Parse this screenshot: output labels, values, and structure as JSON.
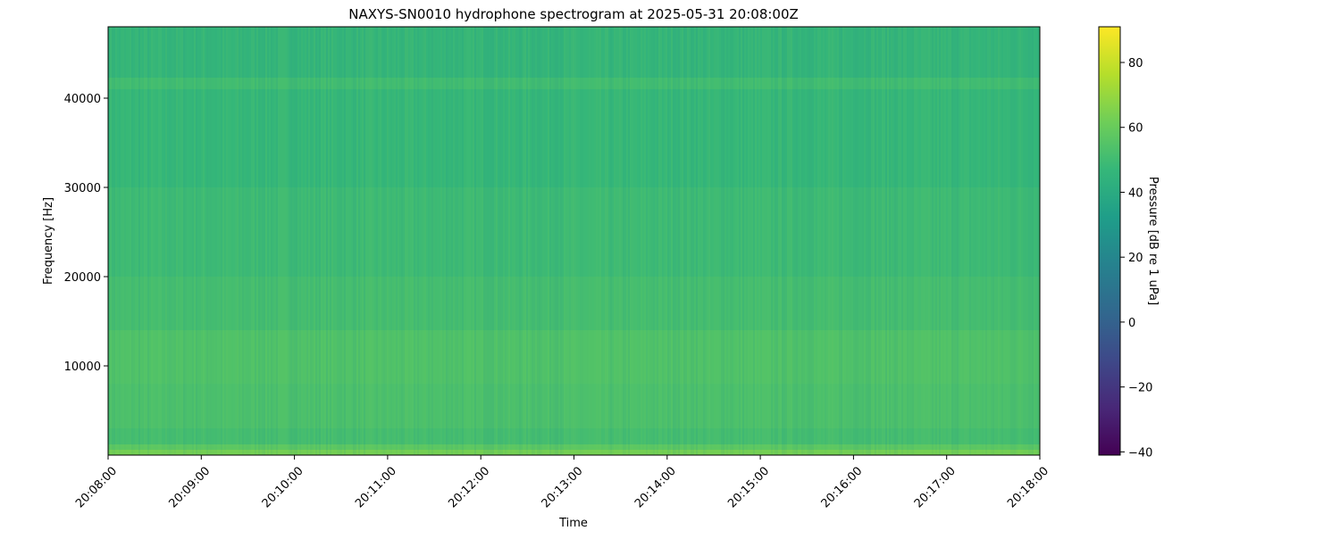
{
  "chart_data": {
    "type": "heatmap",
    "title": "NAXYS-SN0010 hydrophone spectrogram at 2025-05-31 20:08:00Z",
    "xlabel": "Time",
    "ylabel": "Frequency [Hz]",
    "x_ticks": [
      "20:08:00",
      "20:09:00",
      "20:10:00",
      "20:11:00",
      "20:12:00",
      "20:13:00",
      "20:14:00",
      "20:15:00",
      "20:16:00",
      "20:17:00",
      "20:18:00"
    ],
    "y_ticks": [
      10000,
      20000,
      30000,
      40000
    ],
    "ylim": [
      0,
      48000
    ],
    "colormap": "viridis",
    "colorbar": {
      "label": "Pressure [dB re 1 uPa]",
      "range": [
        -41,
        91
      ],
      "ticks": [
        -40,
        -20,
        0,
        20,
        40,
        60,
        80
      ]
    },
    "frequency_profile": [
      {
        "f_low": 0,
        "f_high": 600,
        "db": 63
      },
      {
        "f_low": 600,
        "f_high": 1200,
        "db": 57
      },
      {
        "f_low": 1200,
        "f_high": 3000,
        "db": 51
      },
      {
        "f_low": 3000,
        "f_high": 8000,
        "db": 53
      },
      {
        "f_low": 8000,
        "f_high": 14000,
        "db": 54
      },
      {
        "f_low": 14000,
        "f_high": 20000,
        "db": 51
      },
      {
        "f_low": 20000,
        "f_high": 30000,
        "db": 49
      },
      {
        "f_low": 30000,
        "f_high": 41000,
        "db": 47
      },
      {
        "f_low": 41000,
        "f_high": 42300,
        "db": 50
      },
      {
        "f_low": 42300,
        "f_high": 48000,
        "db": 46
      }
    ]
  }
}
